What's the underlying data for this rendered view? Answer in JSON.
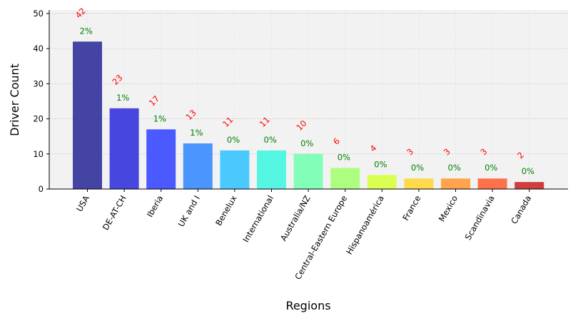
{
  "chart_data": {
    "type": "bar",
    "xlabel": "Regions",
    "ylabel": "Driver Count",
    "ylim": [
      0,
      51
    ],
    "yticks": [
      0,
      10,
      20,
      30,
      40,
      50
    ],
    "grid": true,
    "categories": [
      "USA",
      "DE-AT-CH",
      "Iberia",
      "UK and I",
      "Benelux",
      "International",
      "Australia/NZ",
      "Central-Eastern Europe",
      "Hispanoamérica",
      "France",
      "Mexico",
      "Scandinavia",
      "Canada"
    ],
    "values": [
      42,
      23,
      17,
      13,
      11,
      11,
      10,
      6,
      4,
      3,
      3,
      3,
      2
    ],
    "count_labels": [
      "42",
      "23",
      "17",
      "13",
      "11",
      "11",
      "10",
      "6",
      "4",
      "3",
      "3",
      "3",
      "2"
    ],
    "percent_labels": [
      "2%",
      "1%",
      "1%",
      "1%",
      "0%",
      "0%",
      "0%",
      "0%",
      "0%",
      "0%",
      "0%",
      "0%",
      "0%"
    ],
    "bar_colors": [
      "#2b2b99",
      "#2f2fdc",
      "#3344ff",
      "#3388ff",
      "#33c3ff",
      "#3ff7e0",
      "#73ffb0",
      "#a3ff70",
      "#d7ff3c",
      "#ffd533",
      "#ff9a33",
      "#ff5f33",
      "#cc2222"
    ],
    "count_label_color": "#ff0000",
    "percent_label_color": "#008000",
    "plot_background": "#f2f2f2"
  }
}
